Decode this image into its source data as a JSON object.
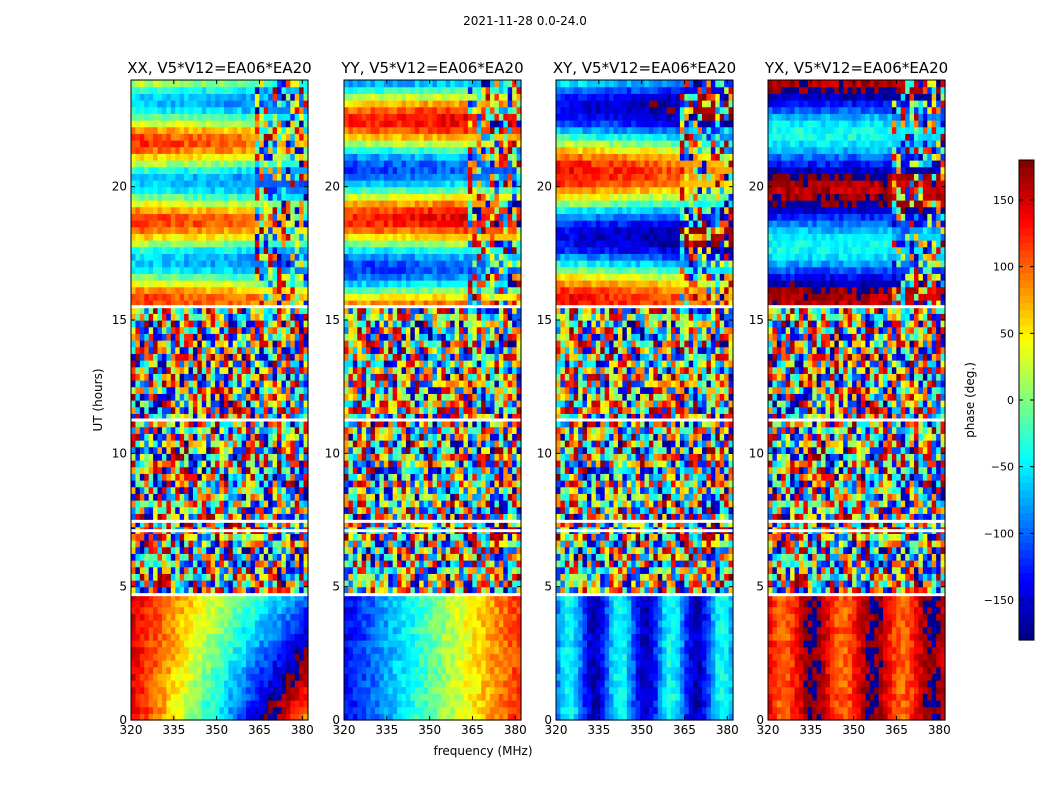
{
  "figure": {
    "title": "2021-11-28 0.0-24.0",
    "xlabel": "frequency (MHz)",
    "ylabel": "UT (hours)"
  },
  "chart_data": {
    "type": "heatmap",
    "xlim": [
      320,
      382
    ],
    "ylim": [
      0,
      24
    ],
    "xticks": [
      320,
      335,
      350,
      365,
      380
    ],
    "yticks": [
      0,
      5,
      10,
      15,
      20
    ],
    "panels": [
      {
        "title": "XX, V5*V12=EA06*EA20",
        "pol": "XX"
      },
      {
        "title": "YY, V5*V12=EA06*EA20",
        "pol": "YY"
      },
      {
        "title": "XY, V5*V12=EA06*EA20",
        "pol": "XY"
      },
      {
        "title": "YX, V5*V12=EA06*EA20",
        "pol": "YX"
      }
    ],
    "gap_hours": [
      15.5,
      11.25,
      7.45,
      7.1,
      4.7
    ],
    "colorbar": {
      "label": "phase (deg.)",
      "range": [
        -180,
        180
      ],
      "ticks": [
        150,
        100,
        50,
        0,
        -50,
        -100,
        -150
      ],
      "tick_labels": [
        "150",
        "100",
        "50",
        "0",
        "−50",
        "−100",
        "−150"
      ],
      "colormap": "jet"
    }
  }
}
